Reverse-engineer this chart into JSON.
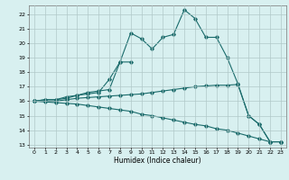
{
  "xlabel": "Humidex (Indice chaleur)",
  "background_color": "#d8f0f0",
  "grid_color": "#b0c8c8",
  "line_color": "#1a6b6b",
  "xlim": [
    -0.5,
    23.5
  ],
  "ylim": [
    12.8,
    22.6
  ],
  "yticks": [
    13,
    14,
    15,
    16,
    17,
    18,
    19,
    20,
    21,
    22
  ],
  "xticks": [
    0,
    1,
    2,
    3,
    4,
    5,
    6,
    7,
    8,
    9,
    10,
    11,
    12,
    13,
    14,
    15,
    16,
    17,
    18,
    19,
    20,
    21,
    22,
    23
  ],
  "line1_x": [
    0,
    1,
    2,
    3,
    4,
    5,
    6,
    7,
    8,
    9,
    10,
    11,
    12,
    13,
    14,
    15,
    16,
    17,
    18,
    19,
    20,
    21,
    22,
    23
  ],
  "line1_y": [
    16.0,
    16.1,
    16.1,
    16.2,
    16.4,
    16.5,
    16.6,
    17.5,
    18.7,
    20.7,
    20.3,
    19.6,
    20.4,
    20.6,
    22.3,
    21.7,
    20.4,
    20.4,
    19.0,
    17.2,
    15.0,
    14.4,
    13.2,
    13.2
  ],
  "line2_x": [
    0,
    1,
    2,
    3,
    4,
    5,
    6,
    7,
    8,
    9
  ],
  "line2_y": [
    16.0,
    16.1,
    16.1,
    16.3,
    16.4,
    16.6,
    16.7,
    16.8,
    18.7,
    18.7
  ],
  "line3_x": [
    0,
    1,
    2,
    3,
    4,
    5,
    6,
    7,
    8,
    9,
    10,
    11,
    12,
    13,
    14,
    15,
    16,
    17,
    18,
    19,
    20,
    21,
    22,
    23
  ],
  "line3_y": [
    16.0,
    16.0,
    16.0,
    16.1,
    16.2,
    16.25,
    16.3,
    16.35,
    16.4,
    16.45,
    16.5,
    16.6,
    16.7,
    16.8,
    16.9,
    17.0,
    17.05,
    17.1,
    17.1,
    17.15,
    15.0,
    14.4,
    13.2,
    13.2
  ],
  "line4_x": [
    0,
    1,
    2,
    3,
    4,
    5,
    6,
    7,
    8,
    9,
    10,
    11,
    12,
    13,
    14,
    15,
    16,
    17,
    18,
    19,
    20,
    21,
    22,
    23
  ],
  "line4_y": [
    16.0,
    15.95,
    15.9,
    15.85,
    15.8,
    15.7,
    15.6,
    15.5,
    15.4,
    15.3,
    15.1,
    15.0,
    14.85,
    14.7,
    14.55,
    14.4,
    14.3,
    14.1,
    14.0,
    13.8,
    13.6,
    13.4,
    13.2,
    13.2
  ]
}
